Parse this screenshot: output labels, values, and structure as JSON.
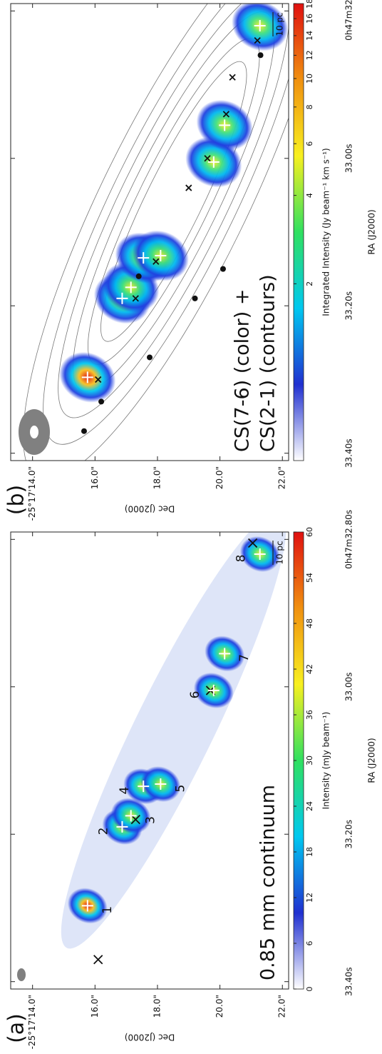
{
  "chart_data": [
    {
      "type": "image",
      "title": "(a)",
      "annotation": [
        "0.85 mm continuum"
      ],
      "xlabel": "Dec (J2000)",
      "ylabel": "RA (J2000)",
      "xlim": [
        13.3,
        22.2
      ],
      "xticks": [
        {
          "value": 14,
          "label": "-25°17'14.0\""
        },
        {
          "value": 16,
          "label": "16.0\""
        },
        {
          "value": 18,
          "label": "18.0\""
        },
        {
          "value": 20,
          "label": "20.0\""
        },
        {
          "value": 22,
          "label": "22.0\""
        }
      ],
      "ylim": [
        32.79,
        33.41
      ],
      "yticks": [
        {
          "value": 33.4,
          "label": "33.40s"
        },
        {
          "value": 33.2,
          "label": "33.20s"
        },
        {
          "value": 33.0,
          "label": "33.00s"
        },
        {
          "value": 32.8,
          "label": "0h47m32.80s"
        }
      ],
      "colorbar": {
        "label": "Intensity (mJy beam⁻¹)",
        "lim": [
          0,
          60
        ],
        "ticks": [
          0,
          6,
          12,
          18,
          24,
          30,
          36,
          42,
          48,
          54,
          60
        ],
        "log": false,
        "colors": [
          "#ffffff",
          "#2030d0",
          "#00c8f0",
          "#30e060",
          "#f8f020",
          "#f09010",
          "#e01010"
        ]
      },
      "scale_bar": "10 pc",
      "sources": [
        {
          "label": "1",
          "ra": 33.297,
          "dec": 15.76
        },
        {
          "label": "2",
          "ra": 33.19,
          "dec": 16.87
        },
        {
          "label": "3",
          "ra": 33.175,
          "dec": 17.15
        },
        {
          "label": "4",
          "ra": 33.135,
          "dec": 17.55
        },
        {
          "label": "5",
          "ra": 33.132,
          "dec": 18.1
        },
        {
          "label": "6",
          "ra": 33.005,
          "dec": 19.8
        },
        {
          "label": "7",
          "ra": 32.955,
          "dec": 20.15
        },
        {
          "label": "8",
          "ra": 32.82,
          "dec": 21.28
        }
      ],
      "crosses": [
        {
          "ra": 33.37,
          "dec": 16.1
        },
        {
          "ra": 33.18,
          "dec": 17.3
        },
        {
          "ra": 33.005,
          "dec": 19.7
        },
        {
          "ra": 32.805,
          "dec": 21.05
        }
      ]
    },
    {
      "type": "image",
      "title": "(b)",
      "annotation": [
        "CS(7-6) (color) +",
        "CS(2-1) (contours)"
      ],
      "xlabel": "Dec (J2000)",
      "ylabel": "RA (J2000)",
      "xlim": [
        13.3,
        22.2
      ],
      "xticks": [
        {
          "value": 14,
          "label": "-25°17'14.0\""
        },
        {
          "value": 16,
          "label": "16.0\""
        },
        {
          "value": 18,
          "label": "18.0\""
        },
        {
          "value": 20,
          "label": "20.0\""
        },
        {
          "value": 22,
          "label": "22.0\""
        }
      ],
      "ylim": [
        32.79,
        33.41
      ],
      "yticks": [
        {
          "value": 33.4,
          "label": "33.40s"
        },
        {
          "value": 33.2,
          "label": "33.20s"
        },
        {
          "value": 33.0,
          "label": "33.00s"
        },
        {
          "value": 32.8,
          "label": "0h47m32.80s"
        }
      ],
      "colorbar": {
        "label": "Integrated Intensity (Jy beam⁻¹ km s⁻¹)",
        "lim": [
          0.5,
          18
        ],
        "ticks": [
          2,
          4,
          6,
          8,
          10,
          12,
          14,
          16,
          18
        ],
        "log": true,
        "colors": [
          "#ffffff",
          "#2030d0",
          "#00c8f0",
          "#30e060",
          "#f8f020",
          "#f09010",
          "#e01010"
        ]
      },
      "scale_bar": "10 pc",
      "sources": [
        {
          "ra": 33.297,
          "dec": 15.76
        },
        {
          "ra": 33.19,
          "dec": 16.87
        },
        {
          "ra": 33.175,
          "dec": 17.15
        },
        {
          "ra": 33.135,
          "dec": 17.55
        },
        {
          "ra": 33.132,
          "dec": 18.1
        },
        {
          "ra": 33.005,
          "dec": 19.8
        },
        {
          "ra": 32.955,
          "dec": 20.15
        },
        {
          "ra": 32.82,
          "dec": 21.28
        }
      ],
      "crosses": [
        {
          "ra": 33.3,
          "dec": 16.1
        },
        {
          "ra": 33.19,
          "dec": 17.3
        },
        {
          "ra": 33.14,
          "dec": 17.95
        },
        {
          "ra": 33.04,
          "dec": 19.0
        },
        {
          "ra": 33.0,
          "dec": 19.6
        },
        {
          "ra": 32.94,
          "dec": 20.2
        },
        {
          "ra": 32.89,
          "dec": 20.4
        },
        {
          "ra": 32.84,
          "dec": 21.2
        }
      ],
      "dots": [
        {
          "ra": 33.37,
          "dec": 15.65
        },
        {
          "ra": 33.33,
          "dec": 16.2
        },
        {
          "ra": 33.16,
          "dec": 17.4
        },
        {
          "ra": 33.27,
          "dec": 17.75
        },
        {
          "ra": 33.19,
          "dec": 19.2
        },
        {
          "ra": 33.15,
          "dec": 20.1
        },
        {
          "ra": 32.86,
          "dec": 21.3
        }
      ]
    }
  ]
}
